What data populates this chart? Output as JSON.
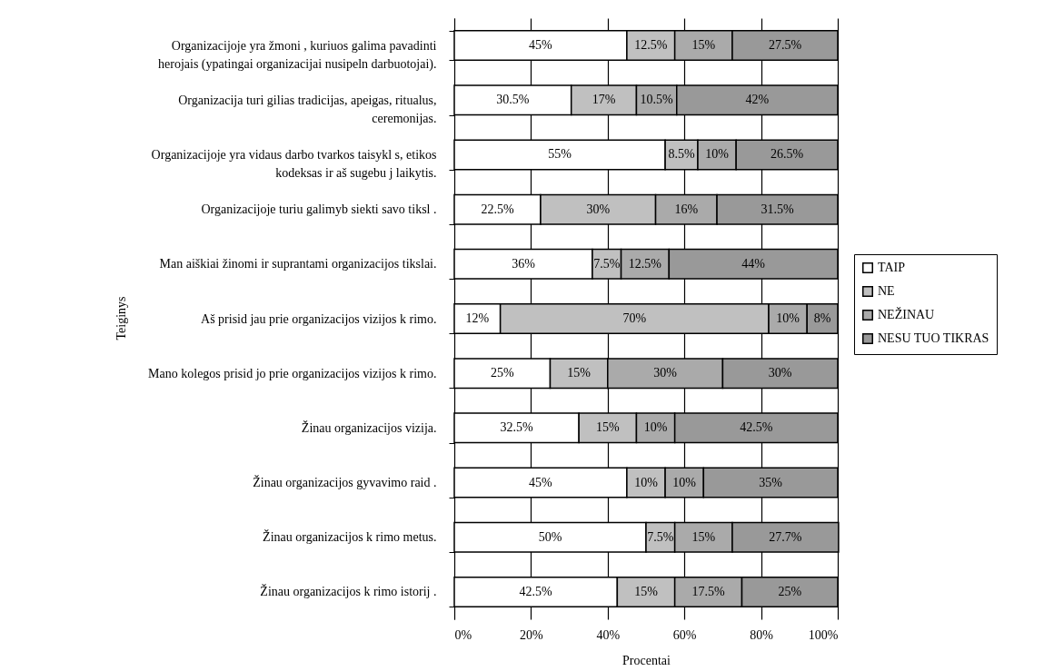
{
  "chart_data": {
    "type": "bar",
    "orientation": "horizontal",
    "stacked": true,
    "xlabel": "Procentai",
    "ylabel": "Teiginys",
    "categories": [
      "Organizacijoje yra žmoni , kuriuos galima pavadinti herojais (ypatingai organizacijai nusipeln  darbuotojai).",
      "Organizacija turi gilias tradicijas, apeigas, ritualus, ceremonijas.",
      "Organizacijoje yra vidaus darbo tvarkos taisykl s, etikos kodeksas ir aš sugebu j  laikytis.",
      "Organizacijoje turiu galimyb  siekti savo tiksl .",
      "Man aiškiai žinomi ir suprantami organizacijos tikslai.",
      "Aš prisid jau prie organizacijos vizijos k rimo.",
      "Mano kolegos prisid jo prie organizacijos vizijos k rimo.",
      "Žinau organizacijos vizija.",
      "Žinau organizacijos gyvavimo raid .",
      "Žinau organizacijos k rimo metus.",
      "Žinau organizacijos k rimo istorij ."
    ],
    "series": [
      {
        "name": "TAIP",
        "color": "#ffffff",
        "values": [
          45,
          30.5,
          55,
          22.5,
          36,
          12,
          25,
          32.5,
          45,
          50,
          42.5
        ],
        "value_labels": [
          "45%",
          "30.5%",
          "55%",
          "22.5%",
          "36%",
          "12%",
          "25%",
          "32.5%",
          "45%",
          "50%",
          "42.5%"
        ]
      },
      {
        "name": "NE",
        "color": "#c0c0c0",
        "values": [
          12.5,
          17,
          8.5,
          30,
          7.5,
          70,
          15,
          15,
          10,
          7.5,
          15
        ],
        "value_labels": [
          "12.5%",
          "17%",
          "8.5%",
          "30%",
          "7.5%",
          "70%",
          "15%",
          "15%",
          "10%",
          "7.5%",
          "15%"
        ]
      },
      {
        "name": "NEŽINAU",
        "color": "#aaaaaa",
        "values": [
          15,
          10.5,
          10,
          16,
          12.5,
          10,
          30,
          10,
          10,
          15,
          17.5
        ],
        "value_labels": [
          "15%",
          "10.5%",
          "10%",
          "16%",
          "12.5%",
          "10%",
          "30%",
          "10%",
          "10%",
          "15%",
          "17.5%"
        ]
      },
      {
        "name": "NESU TUO TIKRAS",
        "color": "#999999",
        "values": [
          27.5,
          42,
          26.5,
          31.5,
          44,
          8,
          30,
          42.5,
          35,
          27.7,
          25
        ],
        "value_labels": [
          "27.5%",
          "42%",
          "26.5%",
          "31.5%",
          "44%",
          "8%",
          "30%",
          "42.5%",
          "35%",
          "27.7%",
          "25%"
        ]
      }
    ],
    "xlim": [
      0,
      100
    ],
    "xticks": [
      {
        "value": 0,
        "label": "0%"
      },
      {
        "value": 20,
        "label": "20%"
      },
      {
        "value": 40,
        "label": "40%"
      },
      {
        "value": 60,
        "label": "60%"
      },
      {
        "value": 80,
        "label": "80%"
      },
      {
        "value": 100,
        "label": "100%"
      }
    ],
    "grid": "x",
    "legend": "right"
  }
}
